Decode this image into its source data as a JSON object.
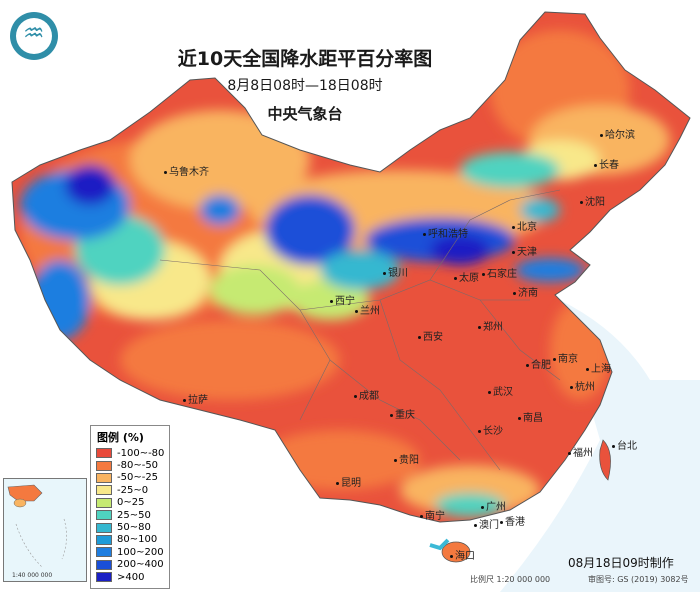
{
  "header": {
    "title": "近10天全国降水距平百分率图",
    "period": "8月8日08时—18日08时",
    "organization": "中央气象台"
  },
  "legend": {
    "title": "图例 (%)",
    "items": [
      {
        "label": "-100~-80",
        "color": "#e8493a"
      },
      {
        "label": "-80~-50",
        "color": "#f4793f"
      },
      {
        "label": "-50~-25",
        "color": "#f9b461"
      },
      {
        "label": "-25~0",
        "color": "#f8e88a"
      },
      {
        "label": "0~25",
        "color": "#c6ea72"
      },
      {
        "label": "25~50",
        "color": "#4fd3c0"
      },
      {
        "label": "50~80",
        "color": "#35b8d0"
      },
      {
        "label": "80~100",
        "color": "#1e9bd8"
      },
      {
        "label": "100~200",
        "color": "#1f7ee0"
      },
      {
        "label": "200~400",
        "color": "#1a4fd8"
      },
      {
        "label": ">400",
        "color": "#1a1fc4"
      }
    ]
  },
  "cities": [
    {
      "name": "乌鲁木齐"
    },
    {
      "name": "哈尔滨"
    },
    {
      "name": "长春"
    },
    {
      "name": "沈阳"
    },
    {
      "name": "北京"
    },
    {
      "name": "天津"
    },
    {
      "name": "呼和浩特"
    },
    {
      "name": "石家庄"
    },
    {
      "name": "太原"
    },
    {
      "name": "济南"
    },
    {
      "name": "银川"
    },
    {
      "name": "西宁"
    },
    {
      "name": "兰州"
    },
    {
      "name": "郑州"
    },
    {
      "name": "西安"
    },
    {
      "name": "合肥"
    },
    {
      "name": "南京"
    },
    {
      "name": "上海"
    },
    {
      "name": "杭州"
    },
    {
      "name": "武汉"
    },
    {
      "name": "拉萨"
    },
    {
      "name": "成都"
    },
    {
      "name": "重庆"
    },
    {
      "name": "长沙"
    },
    {
      "name": "南昌"
    },
    {
      "name": "福州"
    },
    {
      "name": "台北"
    },
    {
      "name": "贵阳"
    },
    {
      "name": "昆明"
    },
    {
      "name": "南宁"
    },
    {
      "name": "广州"
    },
    {
      "name": "香港"
    },
    {
      "name": "澳门"
    },
    {
      "name": "海口"
    }
  ],
  "inset": {
    "scale": "1:40 000 000"
  },
  "footer": {
    "made": "08月18日09时制作",
    "scale": "比例尺 1:20 000 000",
    "review": "审图号: GS (2019) 3082号"
  }
}
